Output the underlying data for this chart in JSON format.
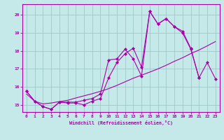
{
  "xlabel": "Windchill (Refroidissement éolien,°C)",
  "bg_color": "#c5e8e8",
  "grid_color": "#a0c8c8",
  "line_color": "#aa00aa",
  "xlim": [
    -0.5,
    23.5
  ],
  "ylim": [
    14.6,
    20.6
  ],
  "yticks": [
    15,
    16,
    17,
    18,
    19,
    20
  ],
  "xticks": [
    0,
    1,
    2,
    3,
    4,
    5,
    6,
    7,
    8,
    9,
    10,
    11,
    12,
    13,
    14,
    15,
    16,
    17,
    18,
    19,
    20,
    21,
    22,
    23
  ],
  "s1_x": [
    0,
    1,
    2,
    3,
    4,
    5,
    6,
    7,
    8,
    9,
    10,
    11,
    12,
    13,
    14,
    15,
    16,
    17,
    18,
    19,
    20,
    21
  ],
  "s1_y": [
    15.75,
    15.2,
    14.9,
    14.75,
    15.15,
    15.15,
    15.15,
    15.25,
    15.35,
    15.6,
    17.5,
    17.55,
    18.1,
    17.55,
    16.6,
    20.2,
    19.5,
    19.8,
    19.35,
    19.0,
    18.1,
    16.5
  ],
  "s2_x": [
    0,
    1,
    2,
    3,
    4,
    5,
    6,
    7,
    8,
    9,
    10,
    11,
    12,
    13,
    14,
    15,
    16,
    17,
    18,
    19,
    20,
    21,
    22,
    23
  ],
  "s2_y": [
    15.75,
    15.2,
    14.9,
    14.75,
    15.15,
    15.1,
    15.1,
    15.0,
    15.2,
    15.35,
    16.5,
    17.35,
    17.85,
    18.15,
    17.1,
    20.2,
    19.5,
    19.8,
    19.35,
    19.1,
    18.15,
    16.5,
    17.35,
    16.45
  ],
  "s3_x": [
    0,
    1,
    2,
    3,
    4,
    5,
    6,
    7,
    8,
    9,
    10,
    11,
    12,
    13,
    14,
    15,
    16,
    17,
    18,
    19,
    20,
    21,
    22,
    23
  ],
  "s3_y": [
    15.6,
    15.2,
    15.05,
    15.1,
    15.18,
    15.25,
    15.38,
    15.5,
    15.62,
    15.75,
    15.9,
    16.08,
    16.28,
    16.48,
    16.65,
    16.82,
    17.0,
    17.2,
    17.42,
    17.62,
    17.85,
    18.05,
    18.28,
    18.52
  ]
}
